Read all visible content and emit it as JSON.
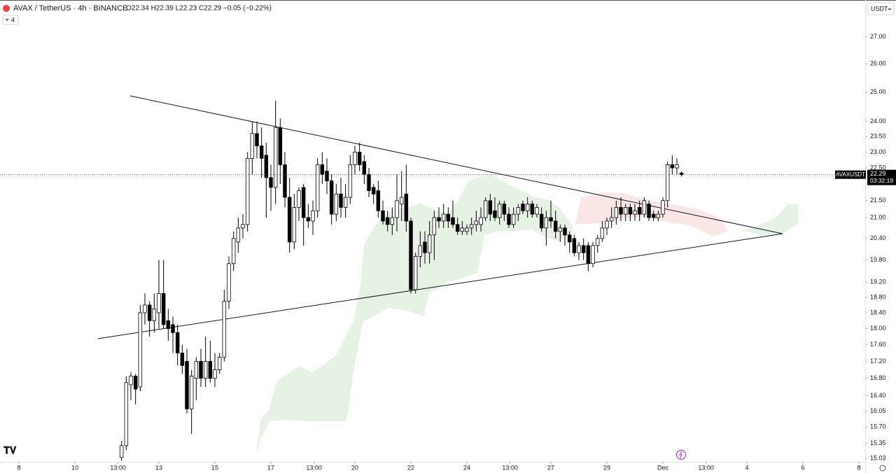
{
  "header": {
    "title": "AVAX / TetherUS · 4h · BINANCE",
    "ohlc": "O22.34 H22.39 L22.23 C22.29 −0.05 (−0.22%)",
    "indicators": "4",
    "currency": "USDT"
  },
  "chart_data": {
    "type": "candlestick",
    "log": true,
    "grid": false,
    "up_color": "#ffffff",
    "down_color": "#000000",
    "symbol": "AVAXUSDT",
    "last_price": 22.29,
    "countdown": "03:32:19",
    "ylim": [
      14.96,
      28.41
    ],
    "yticks": [
      {
        "value": 27,
        "label": "27.00"
      },
      {
        "value": 26,
        "label": "26.00"
      },
      {
        "value": 25,
        "label": "25.00"
      },
      {
        "value": 24,
        "label": "24.00"
      },
      {
        "value": 23.5,
        "label": "23.50"
      },
      {
        "value": 23,
        "label": "23.00"
      },
      {
        "value": 22.5,
        "label": "22.50"
      },
      {
        "value": 21.5,
        "label": "21.50"
      },
      {
        "value": 21,
        "label": "21.00"
      },
      {
        "value": 20.4,
        "label": "20.40"
      },
      {
        "value": 19.8,
        "label": "19.80"
      },
      {
        "value": 19.2,
        "label": "19.20"
      },
      {
        "value": 18.8,
        "label": "18.80"
      },
      {
        "value": 18.4,
        "label": "18.40"
      },
      {
        "value": 18,
        "label": "18.00"
      },
      {
        "value": 17.6,
        "label": "17.60"
      },
      {
        "value": 17.2,
        "label": "17.20"
      },
      {
        "value": 16.8,
        "label": "16.80"
      },
      {
        "value": 16.4,
        "label": "16.40"
      },
      16.05,
      {
        "value": 15.7,
        "label": "15.70"
      },
      15.35,
      15.03
    ],
    "xlim": [
      -26.05,
      159.35
    ],
    "xticks": [
      {
        "value": -22,
        "label": "8"
      },
      {
        "value": -10,
        "label": "10"
      },
      {
        "value": -0.75,
        "label": "13:00"
      },
      {
        "value": 8,
        "label": "13"
      },
      {
        "value": 20,
        "label": "15"
      },
      {
        "value": 32,
        "label": "17"
      },
      {
        "value": 41.25,
        "label": "13:00"
      },
      {
        "value": 50,
        "label": "20"
      },
      {
        "value": 62,
        "label": "22"
      },
      {
        "value": 74,
        "label": "24"
      },
      {
        "value": 83.25,
        "label": "13:00"
      },
      {
        "value": 92,
        "label": "27"
      },
      {
        "value": 104,
        "label": "29"
      },
      {
        "value": 116,
        "label": "Dec"
      },
      {
        "value": 125.25,
        "label": "13:00"
      },
      {
        "value": 134,
        "label": "4"
      },
      {
        "value": 146,
        "label": "6"
      },
      {
        "value": 158,
        "label": "8"
      }
    ],
    "open": [
      15.05,
      15.3,
      16.65,
      16.85,
      16.6,
      18.4,
      18.6,
      18.2,
      18.4,
      18.9,
      18.2,
      18.1,
      17.9,
      17.4,
      17.2,
      16.1,
      16.8,
      17.2,
      16.8,
      17.2,
      16.8,
      17.0,
      17.3,
      18.7,
      19.7,
      20.3,
      20.7,
      20.8,
      22.8,
      23.6,
      23.2,
      22.9,
      22.2,
      21.9,
      23.8,
      22.6,
      21.6,
      20.3,
      21.3,
      21.9,
      21.0,
      20.9,
      21.2,
      22.6,
      22.4,
      22.1,
      21.1,
      21.7,
      21.3,
      21.6,
      22.6,
      23.0,
      22.7,
      22.3,
      21.9,
      21.8,
      21.2,
      21.0,
      20.8,
      21.0,
      21.4,
      21.7,
      20.9,
      19.0,
      19.9,
      20.3,
      20.0,
      20.5,
      21.0,
      20.9,
      21.1,
      21.0,
      20.8,
      20.6,
      20.6,
      20.7,
      20.8,
      20.8,
      21.0,
      21.5,
      21.2,
      21.0,
      21.4,
      21.1,
      20.8,
      21.1,
      21.4,
      21.2,
      21.4,
      21.1,
      21.1,
      20.7,
      21.0,
      20.9,
      20.6,
      20.7,
      20.5,
      20.4,
      20.0,
      20.2,
      20.2,
      19.7,
      20.2,
      20.4,
      20.7,
      20.9,
      21.0,
      21.3,
      21.1,
      21.3,
      21.1,
      21.3,
      21.1,
      21.4,
      21.1,
      21.0,
      21.1,
      21.5,
      22.6,
      22.5,
      22.34
    ],
    "high": [
      15.4,
      16.85,
      16.95,
      16.9,
      18.6,
      18.9,
      18.7,
      18.9,
      19.8,
      19.8,
      18.5,
      18.3,
      18.1,
      17.6,
      17.5,
      17.0,
      17.3,
      17.5,
      17.8,
      17.7,
      17.4,
      17.4,
      19.0,
      19.9,
      20.6,
      21.0,
      21.1,
      23.0,
      24.0,
      24.0,
      23.8,
      23.3,
      22.6,
      24.7,
      24.1,
      23.0,
      22.2,
      21.7,
      21.9,
      22.0,
      21.4,
      21.5,
      22.8,
      23.0,
      22.8,
      22.3,
      22.0,
      22.2,
      22.0,
      22.9,
      23.2,
      23.3,
      22.9,
      22.5,
      22.0,
      22.1,
      21.5,
      21.2,
      21.3,
      22.3,
      22.4,
      22.6,
      21.0,
      20.0,
      20.6,
      20.6,
      20.9,
      21.2,
      21.3,
      21.4,
      21.3,
      21.5,
      21.0,
      20.9,
      20.8,
      21.0,
      21.2,
      21.3,
      21.6,
      21.7,
      21.6,
      21.5,
      21.5,
      21.3,
      21.3,
      21.4,
      21.5,
      21.6,
      21.5,
      21.4,
      21.3,
      21.2,
      21.5,
      21.2,
      20.8,
      20.8,
      20.6,
      20.5,
      20.3,
      20.4,
      20.3,
      20.3,
      20.5,
      20.9,
      21.0,
      21.3,
      21.5,
      21.6,
      21.4,
      21.4,
      21.4,
      21.5,
      21.6,
      21.5,
      21.2,
      21.2,
      21.6,
      22.7,
      22.9,
      22.8,
      22.39
    ],
    "low": [
      14.98,
      15.2,
      16.3,
      16.2,
      16.5,
      18.1,
      17.8,
      17.9,
      18.0,
      18.0,
      17.7,
      17.4,
      17.1,
      16.9,
      16.0,
      15.55,
      16.3,
      16.6,
      16.6,
      16.7,
      16.6,
      16.9,
      17.2,
      18.5,
      19.5,
      20.0,
      20.4,
      20.6,
      22.3,
      22.8,
      22.2,
      21.0,
      21.2,
      21.4,
      22.0,
      21.3,
      20.0,
      20.1,
      20.9,
      20.2,
      20.7,
      20.5,
      21.0,
      22.0,
      21.7,
      20.8,
      20.9,
      21.0,
      21.0,
      21.4,
      22.3,
      22.4,
      22.0,
      21.6,
      21.4,
      21.0,
      20.8,
      20.6,
      20.5,
      20.6,
      20.9,
      20.6,
      18.9,
      18.9,
      19.6,
      19.7,
      19.7,
      19.8,
      20.7,
      20.7,
      20.7,
      20.7,
      20.5,
      20.5,
      20.5,
      20.5,
      20.6,
      20.6,
      20.9,
      20.9,
      20.9,
      20.8,
      20.9,
      20.7,
      20.7,
      20.9,
      21.1,
      21.0,
      21.0,
      21.0,
      20.6,
      20.2,
      20.7,
      20.4,
      20.3,
      20.2,
      20.0,
      19.9,
      19.8,
      19.8,
      19.5,
      19.6,
      20.0,
      20.3,
      20.5,
      20.7,
      20.8,
      20.9,
      20.9,
      20.9,
      20.9,
      20.9,
      21.0,
      20.9,
      20.9,
      20.9,
      21.0,
      21.3,
      22.3,
      22.3,
      22.23
    ],
    "close": [
      15.3,
      16.7,
      16.85,
      16.55,
      18.4,
      18.6,
      18.2,
      18.5,
      18.9,
      18.1,
      18.0,
      17.9,
      17.4,
      17.1,
      16.1,
      16.85,
      17.2,
      16.8,
      17.2,
      16.8,
      17.0,
      17.3,
      18.7,
      19.7,
      20.4,
      20.7,
      20.8,
      22.8,
      23.6,
      23.2,
      22.8,
      22.2,
      21.9,
      23.8,
      22.6,
      21.6,
      20.3,
      21.3,
      21.8,
      21.0,
      20.9,
      21.2,
      22.6,
      22.3,
      22.1,
      21.1,
      21.7,
      21.3,
      21.6,
      22.6,
      23.0,
      22.6,
      22.3,
      21.8,
      21.7,
      21.2,
      20.9,
      20.8,
      21.0,
      21.5,
      21.6,
      20.9,
      19.0,
      19.9,
      20.2,
      20.0,
      20.5,
      21.0,
      20.9,
      21.1,
      20.9,
      20.8,
      20.6,
      20.7,
      20.7,
      20.8,
      20.9,
      21.0,
      21.5,
      21.1,
      21.0,
      21.4,
      21.1,
      20.8,
      21.1,
      21.3,
      21.2,
      21.4,
      21.1,
      21.3,
      20.7,
      21.0,
      20.9,
      20.6,
      20.7,
      20.5,
      20.3,
      20.0,
      20.2,
      20.0,
      19.7,
      20.2,
      20.4,
      20.7,
      20.9,
      21.0,
      21.3,
      21.1,
      21.3,
      21.1,
      21.2,
      21.1,
      21.5,
      21.0,
      21.0,
      21.1,
      21.5,
      22.6,
      22.5,
      22.6,
      22.29
    ]
  }
}
